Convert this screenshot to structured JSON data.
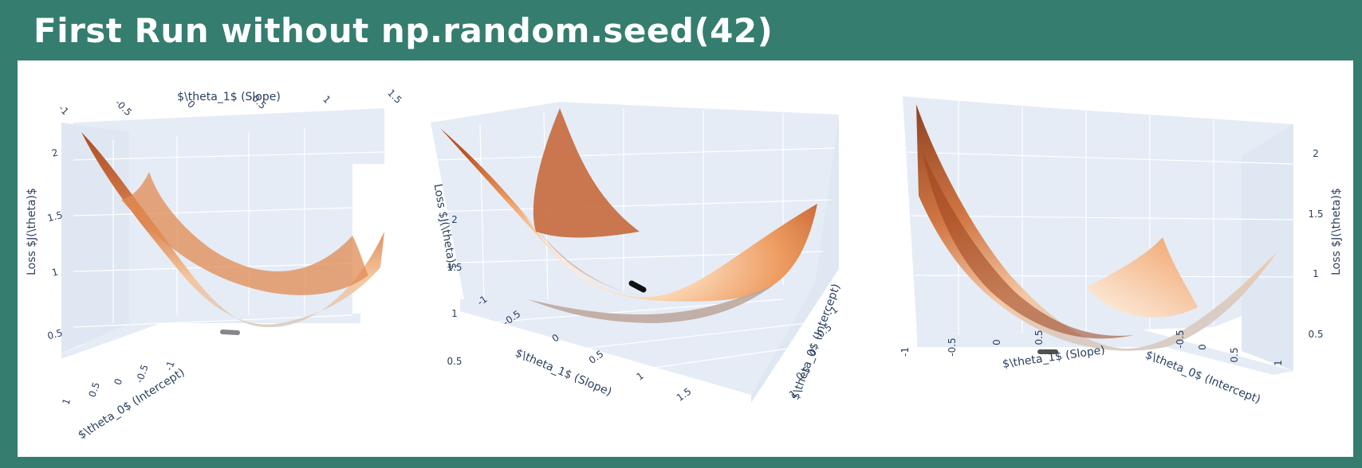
{
  "page": {
    "title": "First Run without np.random.seed(42)"
  },
  "colors": {
    "background": "#357d6f",
    "panel": "#ffffff",
    "pane": "#e5ecf6",
    "grid": "#ffffff",
    "text": "#2a3f5f",
    "surface_low": "#fff8f0",
    "surface_mid": "#f2a56e",
    "surface_high": "#a8461b",
    "path": "#111111"
  },
  "chart_data": [
    {
      "type": "surface3d",
      "title": "",
      "surface": "Loss J(theta) over intercept and slope (convex bowl)",
      "xlabel": "$\\theta_1$ (Slope)",
      "ylabel": "$\\theta_0$ (Intercept)",
      "zlabel": "Loss $J(\\theta)$",
      "x_ticks": [
        "-1",
        "-0.5",
        "0",
        "0.5",
        "1",
        "1.5"
      ],
      "y_ticks": [
        "1",
        "0.5",
        "0",
        "-0.5",
        "-1"
      ],
      "z_ticks": [
        "0.5",
        "1",
        "1.5",
        "2"
      ],
      "xlim": [
        -1,
        1.7
      ],
      "ylim": [
        -1,
        1
      ],
      "zlim": [
        0.4,
        2.2
      ],
      "min_point": {
        "theta0": 0.2,
        "theta1": 0.5,
        "loss": 0.45
      }
    },
    {
      "type": "surface3d",
      "title": "",
      "xlabel": "$\\theta_1$ (Slope)",
      "ylabel": "$\\theta_0$ (Intercept)",
      "zlabel": "Loss $J(\\theta)$",
      "x_ticks": [
        "-1",
        "-0.5",
        "0",
        "0.5",
        "1",
        "1.5"
      ],
      "y_ticks": [
        "-1",
        "-0.5",
        "0",
        "0.5",
        "1"
      ],
      "z_ticks": [
        "0.5",
        "1",
        "1.5",
        "2"
      ],
      "xlim": [
        -1,
        1.7
      ],
      "ylim": [
        -1,
        1
      ],
      "zlim": [
        0.4,
        2.2
      ],
      "min_point": {
        "theta0": 0.2,
        "theta1": 0.5,
        "loss": 0.45
      }
    },
    {
      "type": "surface3d",
      "title": "",
      "xlabel": "$\\theta_1$ (Slope)",
      "ylabel": "$\\theta_0$ (Intercept)",
      "zlabel": "Loss $J(\\theta)$",
      "x_ticks": [
        "-1",
        "-0.5",
        "0",
        "0.5"
      ],
      "y_ticks": [
        "-0.5",
        "0",
        "0.5",
        "1"
      ],
      "z_ticks": [
        "0.5",
        "1",
        "1.5",
        "2"
      ],
      "xlim": [
        -1,
        1.7
      ],
      "ylim": [
        -1,
        1
      ],
      "zlim": [
        0.4,
        2.2
      ],
      "min_point": {
        "theta0": 0.2,
        "theta1": 0.5,
        "loss": 0.45
      }
    }
  ]
}
